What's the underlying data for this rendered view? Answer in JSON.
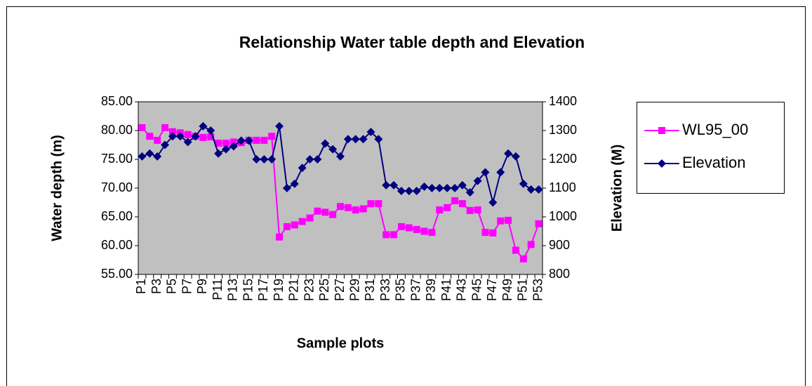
{
  "chart_data": {
    "type": "line",
    "title": "Relationship Water table depth and Elevation",
    "x_label": "Sample plots",
    "y_label": "Water depth (m)",
    "y2_label": "Elevation (M)",
    "categories": [
      "P1",
      null,
      "P3",
      null,
      "P5",
      null,
      "P7",
      null,
      "P9",
      null,
      "P11",
      null,
      "P13",
      null,
      "P15",
      null,
      "P17",
      null,
      "P19",
      null,
      "P21",
      null,
      "P23",
      null,
      "P25",
      null,
      "P27",
      null,
      "P29",
      null,
      "P31",
      null,
      "P33",
      null,
      "P35",
      null,
      "P37",
      null,
      "P39",
      null,
      "P41",
      null,
      "P43",
      null,
      "P45",
      null,
      "P47",
      null,
      "P49",
      null,
      "P51",
      null,
      "P53"
    ],
    "series": [
      {
        "name": "WL95_00",
        "color": "#ff00ff",
        "marker": "square",
        "values": [
          80.5,
          79.0,
          78.3,
          80.5,
          79.8,
          79.6,
          79.3,
          79.0,
          78.8,
          78.9,
          77.8,
          77.8,
          78.0,
          77.9,
          78.3,
          78.3,
          78.3,
          79.0,
          61.5,
          63.3,
          63.6,
          64.2,
          64.8,
          66.0,
          65.8,
          65.4,
          66.8,
          66.6,
          66.2,
          66.4,
          67.3,
          67.3,
          61.9,
          61.9,
          63.3,
          63.1,
          62.8,
          62.5,
          62.3,
          66.2,
          66.6,
          67.8,
          67.3,
          66.1,
          66.2,
          62.3,
          62.2,
          64.3,
          64.4,
          59.2,
          57.7,
          60.2,
          63.8
        ]
      },
      {
        "name": "Elevation",
        "color": "#000080",
        "marker": "diamond",
        "axis": "y2",
        "values": [
          1210,
          1220,
          1210,
          1250,
          1280,
          1280,
          1260,
          1280,
          1315,
          1300,
          1220,
          1235,
          1245,
          1265,
          1265,
          1200,
          1200,
          1200,
          1315,
          1100,
          1115,
          1170,
          1200,
          1200,
          1255,
          1235,
          1210,
          1270,
          1270,
          1270,
          1295,
          1270,
          1110,
          1110,
          1090,
          1090,
          1090,
          1105,
          1100,
          1100,
          1100,
          1100,
          1110,
          1085,
          1125,
          1155,
          1050,
          1155,
          1220,
          1210,
          1115,
          1095,
          1095
        ]
      }
    ],
    "ylim": [
      55,
      85
    ],
    "yticks": [
      {
        "value": 55,
        "label": "55.00"
      },
      {
        "value": 60,
        "label": "60.00"
      },
      {
        "value": 65,
        "label": "65.00"
      },
      {
        "value": 70,
        "label": "70.00"
      },
      {
        "value": 75,
        "label": "75.00"
      },
      {
        "value": 80,
        "label": "80.00"
      },
      {
        "value": 85,
        "label": "85.00"
      }
    ],
    "y2lim": [
      800,
      1400
    ],
    "y2ticks": [
      800,
      900,
      1000,
      1100,
      1200,
      1300,
      1400
    ],
    "grid": false,
    "legend": "right",
    "plot_background": "#c0c0c0"
  }
}
